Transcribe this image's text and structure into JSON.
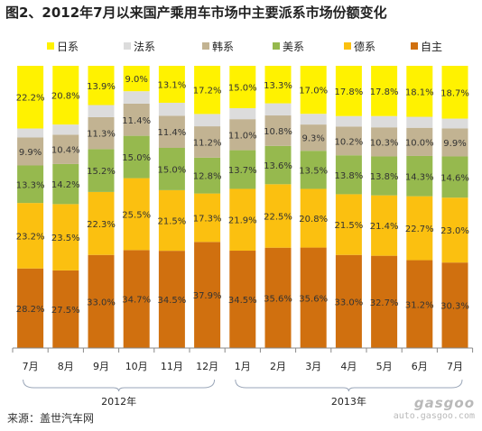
{
  "title": "图2、2012年7月以来国产乘用车市场中主要派系市场份额变化",
  "source": "来源：盖世汽车网",
  "watermark": {
    "logo": "gasgoo",
    "url": "auto.gasgoo.com"
  },
  "chart_data": {
    "type": "bar",
    "stacked": true,
    "percent_stacked": true,
    "categories": [
      "7月",
      "8月",
      "9月",
      "10月",
      "11月",
      "12月",
      "1月",
      "2月",
      "3月",
      "4月",
      "5月",
      "6月",
      "7月"
    ],
    "year_groups": [
      {
        "label": "2012年",
        "from": 0,
        "to": 5
      },
      {
        "label": "2013年",
        "from": 6,
        "to": 12
      }
    ],
    "legend_position": "top",
    "series": [
      {
        "name": "自主",
        "color": "#d0700f",
        "values": [
          28.2,
          27.5,
          33.0,
          34.7,
          34.5,
          37.9,
          34.5,
          35.6,
          35.6,
          33.0,
          32.7,
          31.2,
          30.3
        ]
      },
      {
        "name": "德系",
        "color": "#fbc010",
        "values": [
          23.2,
          23.5,
          22.3,
          25.5,
          21.5,
          17.3,
          21.9,
          22.5,
          20.8,
          21.5,
          21.4,
          22.7,
          23.0
        ]
      },
      {
        "name": "美系",
        "color": "#96b94e",
        "values": [
          13.3,
          14.2,
          15.2,
          15.0,
          15.0,
          12.8,
          13.7,
          13.6,
          13.5,
          13.8,
          13.8,
          14.3,
          14.6
        ]
      },
      {
        "name": "韩系",
        "color": "#c2b392",
        "values": [
          9.9,
          10.4,
          11.3,
          11.4,
          11.4,
          11.2,
          11.0,
          10.8,
          9.3,
          10.2,
          10.3,
          10.0,
          9.9
        ]
      },
      {
        "name": "法系",
        "color": "#dcdcdc",
        "values": [
          3.2,
          3.6,
          4.3,
          4.4,
          4.6,
          4.4,
          3.9,
          4.3,
          3.8,
          3.7,
          4.0,
          3.9,
          3.5
        ]
      },
      {
        "name": "日系",
        "color": "#fff200",
        "values": [
          22.2,
          20.8,
          13.9,
          9.0,
          13.1,
          17.2,
          15.0,
          13.3,
          17.0,
          17.8,
          17.8,
          18.1,
          18.7
        ]
      }
    ],
    "label_series": [
      "自主",
      "德系",
      "美系",
      "韩系",
      "日系"
    ],
    "legend_order": [
      "日系",
      "法系",
      "韩系",
      "美系",
      "德系",
      "自主"
    ]
  }
}
